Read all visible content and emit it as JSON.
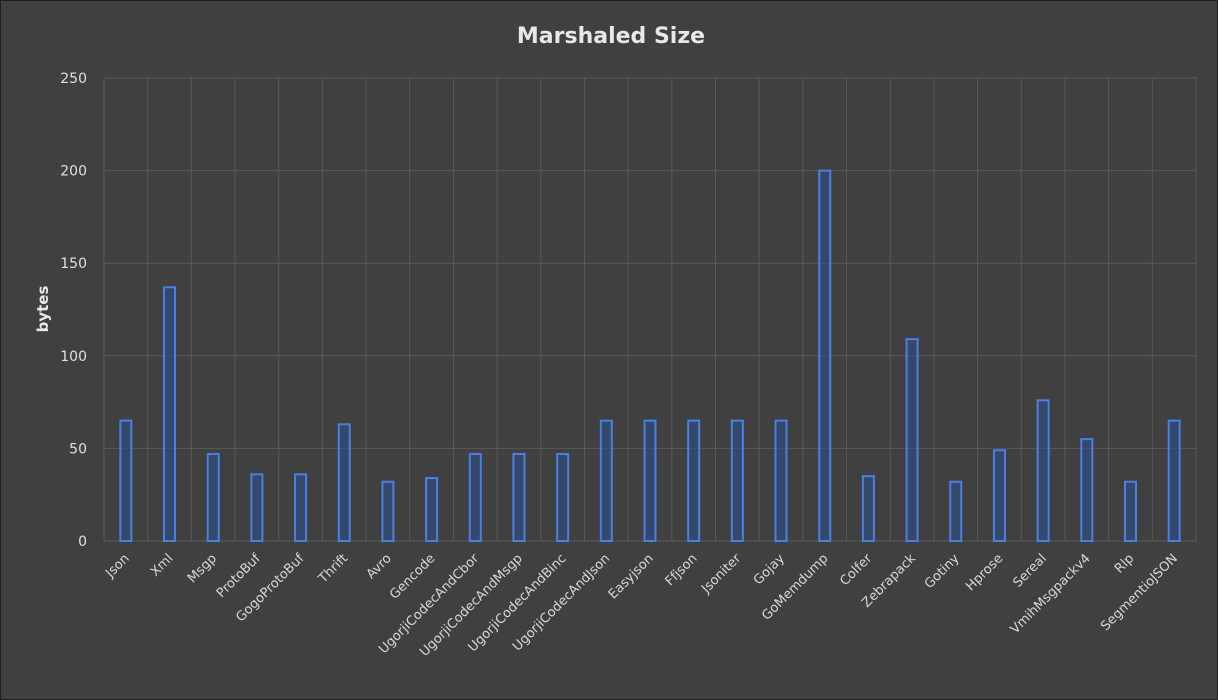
{
  "chart_data": {
    "type": "bar",
    "title": "Marshaled Size",
    "xlabel": "",
    "ylabel": "bytes",
    "ylim": [
      0,
      250
    ],
    "yticks": [
      0,
      50,
      100,
      150,
      200,
      250
    ],
    "grid": true,
    "legend": "none",
    "bar_style": "outlined",
    "colors": {
      "bar_fill": "#2a4f8f",
      "bar_edge": "#4d7fe0",
      "background": "#404040",
      "grid": "#5a5a5a",
      "text": "#e0e0e0"
    },
    "categories": [
      "Json",
      "Xml",
      "Msgp",
      "ProtoBuf",
      "GogoProtoBuf",
      "Thrift",
      "Avro",
      "Gencode",
      "UgorjiCodecAndCbor",
      "UgorjiCodecAndMsgp",
      "UgorjiCodecAndBinc",
      "UgorjiCodecAndJson",
      "Easyjson",
      "Ffjson",
      "Jsoniter",
      "Gojay",
      "GoMemdump",
      "Colfer",
      "Zebrapack",
      "Gotiny",
      "Hprose",
      "Sereal",
      "VmihMsgpackv4",
      "Rlp",
      "SegmentioJSON"
    ],
    "values": [
      65,
      137,
      47,
      36,
      36,
      63,
      32,
      34,
      47,
      47,
      47,
      65,
      65,
      65,
      65,
      65,
      200,
      35,
      109,
      32,
      49,
      76,
      55,
      32,
      65
    ]
  }
}
